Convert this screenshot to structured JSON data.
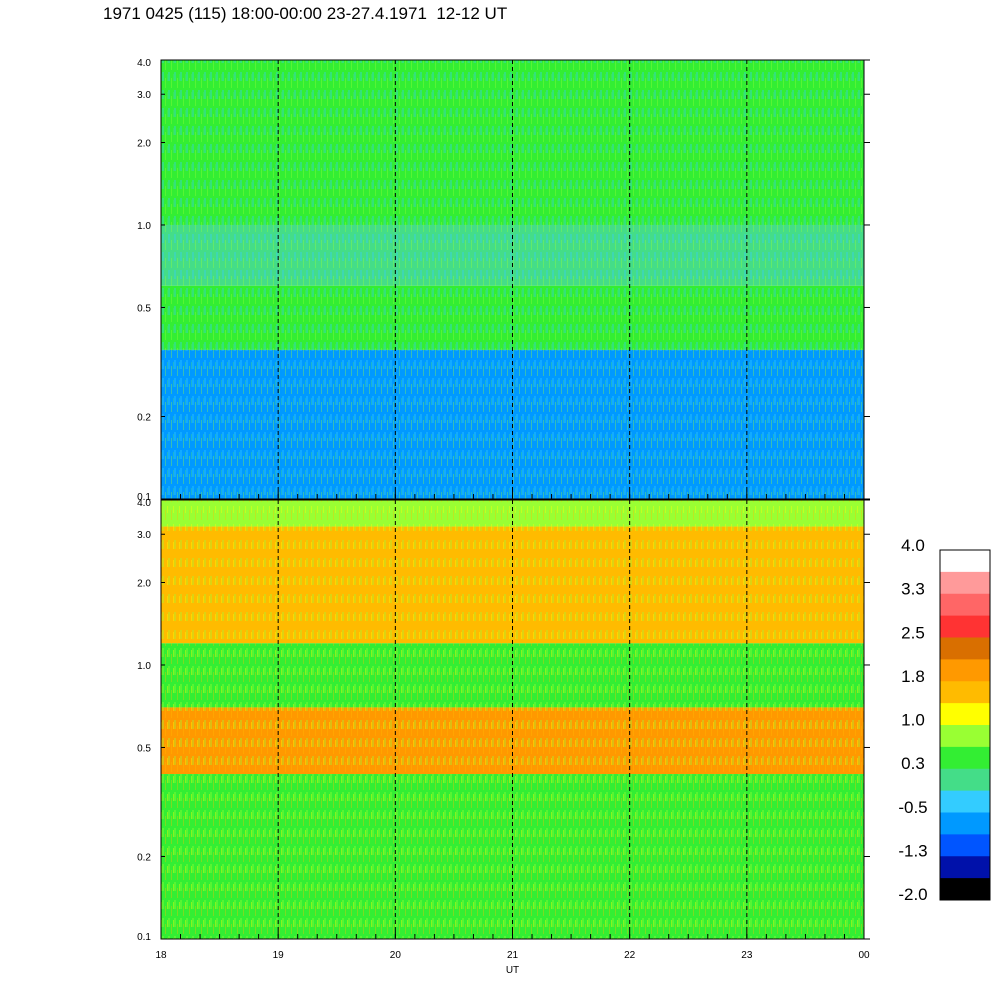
{
  "title": "1971 0425 (115) 18:00-00:00 23-27.4.1971  12-12 UT",
  "chart_data": [
    {
      "type": "heatmap",
      "panel": "upper",
      "x_ticks": [
        "18",
        "19",
        "20",
        "21",
        "22",
        "23",
        "00"
      ],
      "x_values": [
        18,
        19,
        20,
        21,
        22,
        23,
        24
      ],
      "y_scale": "log",
      "y_range": [
        0.1,
        4.0
      ],
      "y_ticks": [
        "0.1",
        "0.2",
        "0.5",
        "1.0",
        "2.0",
        "3.0",
        "4.0"
      ],
      "y_values": [
        0.1,
        0.2,
        0.5,
        1.0,
        2.0,
        3.0,
        4.0
      ],
      "hour_gridlines": [
        19,
        20,
        21,
        22,
        23
      ],
      "value_bands": [
        {
          "y": [
            2.0,
            4.0
          ],
          "value": 0.6
        },
        {
          "y": [
            1.0,
            2.0
          ],
          "value": 0.3
        },
        {
          "y": [
            0.6,
            1.0
          ],
          "value": 0.0
        },
        {
          "y": [
            0.35,
            0.6
          ],
          "value": 0.4
        },
        {
          "y": [
            0.1,
            0.35
          ],
          "value": -0.6
        }
      ]
    },
    {
      "type": "heatmap",
      "panel": "lower",
      "x_ticks": [
        "18",
        "19",
        "20",
        "21",
        "22",
        "23",
        "00"
      ],
      "x_values": [
        18,
        19,
        20,
        21,
        22,
        23,
        24
      ],
      "x_label": "UT",
      "y_scale": "log",
      "y_range": [
        0.1,
        4.0
      ],
      "y_ticks": [
        "0.1",
        "0.2",
        "0.5",
        "1.0",
        "2.0",
        "3.0",
        "4.0"
      ],
      "y_values": [
        0.1,
        0.2,
        0.5,
        1.0,
        2.0,
        3.0,
        4.0
      ],
      "hour_gridlines": [
        19,
        20,
        21,
        22,
        23
      ],
      "value_bands": [
        {
          "y": [
            3.2,
            4.0
          ],
          "value": 1.0
        },
        {
          "y": [
            1.2,
            3.2
          ],
          "value": 1.7
        },
        {
          "y": [
            0.7,
            1.2
          ],
          "value": 0.6
        },
        {
          "y": [
            0.4,
            0.7
          ],
          "value": 1.8
        },
        {
          "y": [
            0.1,
            0.4
          ],
          "value": 0.6
        }
      ]
    }
  ],
  "colorbar": {
    "labels": [
      "4.0",
      "3.3",
      "2.5",
      "1.8",
      "1.0",
      "0.3",
      "-0.5",
      "-1.3",
      "-2.0"
    ],
    "colors": [
      "#ffffff",
      "#ff9a9a",
      "#ff6666",
      "#ff3333",
      "#d96f00",
      "#ff9900",
      "#ffbb00",
      "#ffff00",
      "#99ff33",
      "#33ee33",
      "#44dd88",
      "#33ccff",
      "#0099ff",
      "#0055ff",
      "#0011aa",
      "#000000"
    ]
  }
}
